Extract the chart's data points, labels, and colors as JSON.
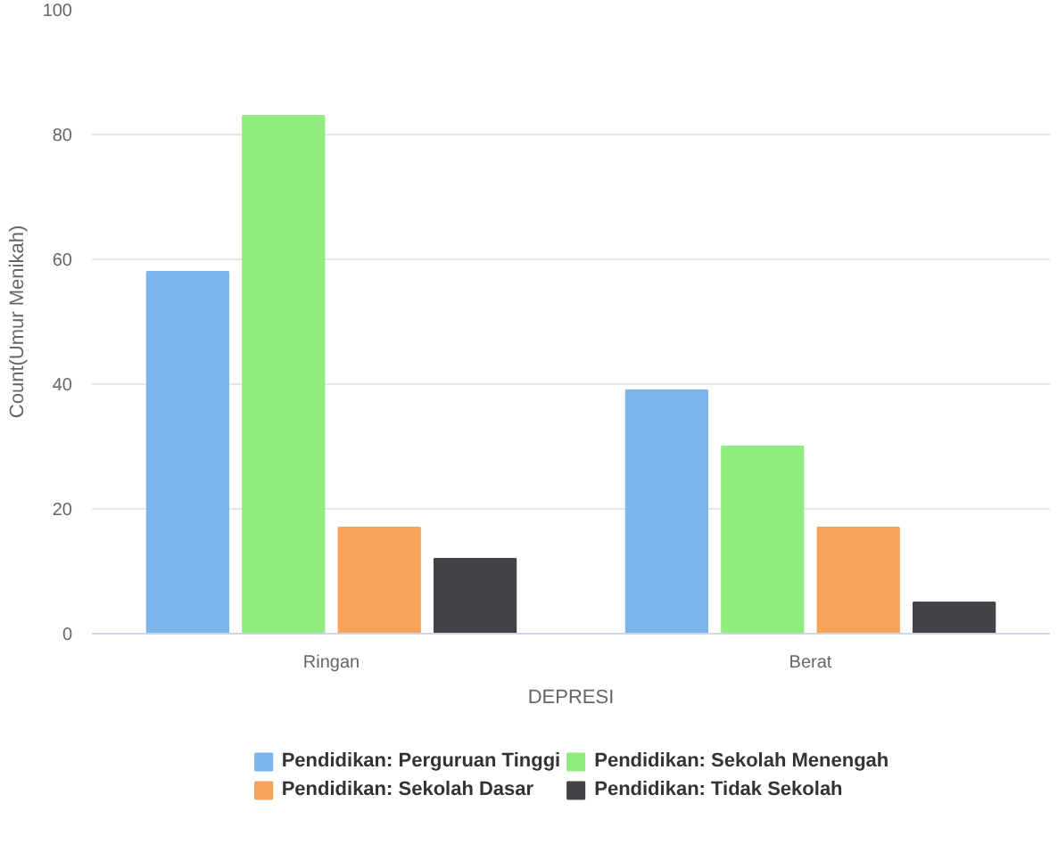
{
  "chart_data": {
    "type": "bar",
    "xlabel": "DEPRESI",
    "ylabel": "Count(Umur Menikah)",
    "categories": [
      "Ringan",
      "Berat"
    ],
    "series": [
      {
        "name": "Pendidikan: Perguruan Tinggi",
        "color": "#7cb5ec",
        "values": [
          58,
          39
        ]
      },
      {
        "name": "Pendidikan: Sekolah Menengah",
        "color": "#90ed7d",
        "values": [
          83,
          30
        ]
      },
      {
        "name": "Pendidikan: Sekolah Dasar",
        "color": "#f7a35c",
        "values": [
          17,
          17
        ]
      },
      {
        "name": "Pendidikan: Tidak Sekolah",
        "color": "#434348",
        "values": [
          12,
          5
        ]
      }
    ],
    "ylim": [
      0,
      100
    ],
    "yticks": [
      0,
      20,
      40,
      60,
      80,
      100
    ],
    "grid": "y",
    "legend": "bottom"
  }
}
